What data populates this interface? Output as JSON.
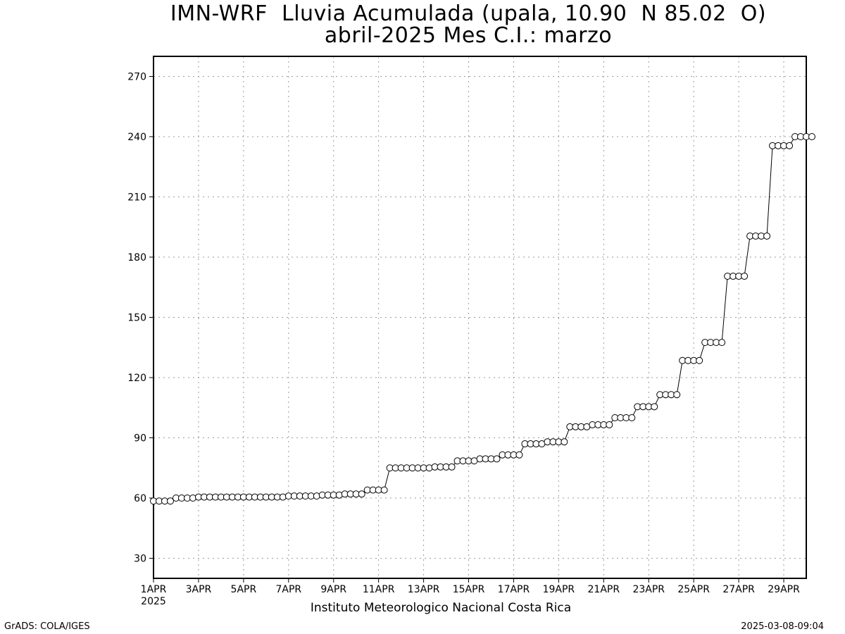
{
  "title_line1": "IMN-WRF  Lluvia Acumulada (upala, 10.90  N 85.02  O)",
  "title_line2": "abril-2025 Mes C.I.: marzo",
  "institution": "Instituto Meteorologico Nacional Costa Rica",
  "credit_left": "GrADS: COLA/IGES",
  "credit_right": "2025-03-08-09:04",
  "chart_data": {
    "type": "line",
    "title": "IMN-WRF  Lluvia Acumulada (upala, 10.90  N 85.02  O)",
    "subtitle": "abril-2025 Mes C.I.: marzo",
    "xlabel": "",
    "ylabel": "",
    "x_unit": "day of April 2025 (4 steps per day, 6-hourly)",
    "x_start": "1APR2025",
    "x_step_days": 0.25,
    "xlim": [
      1,
      30
    ],
    "ylim": [
      20,
      280
    ],
    "yticks": [
      30,
      60,
      90,
      120,
      150,
      180,
      210,
      240,
      270
    ],
    "xtick_labels": [
      "1APR",
      "3APR",
      "5APR",
      "7APR",
      "9APR",
      "11APR",
      "13APR",
      "15APR",
      "17APR",
      "19APR",
      "21APR",
      "23APR",
      "25APR",
      "27APR",
      "29APR"
    ],
    "xtick_days": [
      1,
      3,
      5,
      7,
      9,
      11,
      13,
      15,
      17,
      19,
      21,
      23,
      25,
      27,
      29
    ],
    "year_label": "2025",
    "grid": true,
    "series": [
      {
        "marker": "open-circle",
        "color": "#000000",
        "values": [
          58.5,
          58.5,
          58.5,
          58.5,
          60.0,
          60.0,
          60.0,
          60.0,
          60.5,
          60.5,
          60.5,
          60.5,
          60.5,
          60.5,
          60.5,
          60.5,
          60.5,
          60.5,
          60.5,
          60.5,
          60.5,
          60.5,
          60.5,
          60.5,
          61.0,
          61.0,
          61.0,
          61.0,
          61.0,
          61.0,
          61.5,
          61.5,
          61.5,
          61.5,
          62.0,
          62.0,
          62.0,
          62.0,
          64.0,
          64.0,
          64.0,
          64.0,
          75.0,
          75.0,
          75.0,
          75.0,
          75.0,
          75.0,
          75.0,
          75.0,
          75.5,
          75.5,
          75.5,
          75.5,
          78.5,
          78.5,
          78.5,
          78.5,
          79.5,
          79.5,
          79.5,
          79.5,
          81.5,
          81.5,
          81.5,
          81.5,
          87.0,
          87.0,
          87.0,
          87.0,
          88.0,
          88.0,
          88.0,
          88.0,
          95.5,
          95.5,
          95.5,
          95.5,
          96.5,
          96.5,
          96.5,
          96.5,
          100.0,
          100.0,
          100.0,
          100.0,
          105.5,
          105.5,
          105.5,
          105.5,
          111.5,
          111.5,
          111.5,
          111.5,
          128.5,
          128.5,
          128.5,
          128.5,
          137.5,
          137.5,
          137.5,
          137.5,
          170.5,
          170.5,
          170.5,
          170.5,
          190.5,
          190.5,
          190.5,
          190.5,
          235.5,
          235.5,
          235.5,
          235.5,
          240.0,
          240.0,
          240.0,
          240.0
        ]
      }
    ]
  }
}
